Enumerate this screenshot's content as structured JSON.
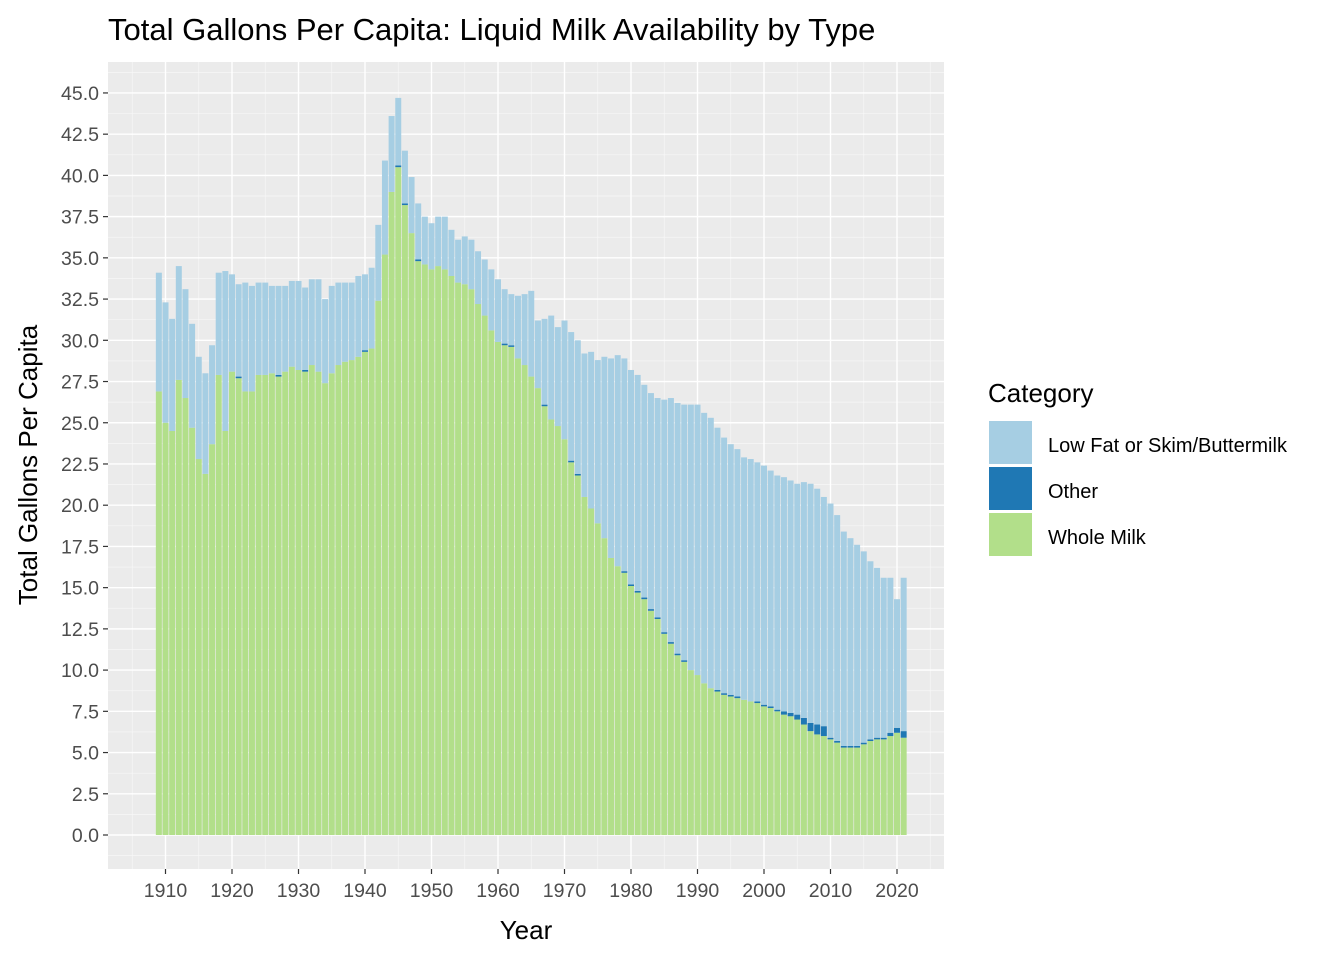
{
  "chart_data": {
    "type": "bar",
    "stacked": true,
    "title": "Total Gallons Per Capita: Liquid Milk Availability by Type",
    "xlabel": "Year",
    "ylabel": "Total Gallons Per Capita",
    "xlim": [
      1909,
      2021
    ],
    "ylim": [
      0,
      45
    ],
    "x_ticks": [
      1910,
      1920,
      1930,
      1940,
      1950,
      1960,
      1970,
      1980,
      1990,
      2000,
      2010,
      2020
    ],
    "y_ticks": [
      "0.0",
      "2.5",
      "5.0",
      "7.5",
      "10.0",
      "12.5",
      "15.0",
      "17.5",
      "20.0",
      "22.5",
      "25.0",
      "27.5",
      "30.0",
      "32.5",
      "35.0",
      "37.5",
      "40.0",
      "42.5",
      "45.0"
    ],
    "grid": true,
    "legend_position": "right",
    "legend": {
      "title": "Category",
      "entries": [
        {
          "name": "Low Fat or Skim/Buttermilk",
          "color": "#a6cee3"
        },
        {
          "name": "Other",
          "color": "#1f78b4"
        },
        {
          "name": "Whole Milk",
          "color": "#b2df8a"
        }
      ]
    },
    "colors": {
      "Low Fat or Skim/Buttermilk": "#a6cee3",
      "Other": "#1f78b4",
      "Whole Milk": "#b2df8a",
      "panel_background": "#ebebeb",
      "grid_major": "#ffffff",
      "grid_minor": "#f5f5f5"
    },
    "x": [
      1909,
      1910,
      1911,
      1912,
      1913,
      1914,
      1915,
      1916,
      1917,
      1918,
      1919,
      1920,
      1921,
      1922,
      1923,
      1924,
      1925,
      1926,
      1927,
      1928,
      1929,
      1930,
      1931,
      1932,
      1933,
      1934,
      1935,
      1936,
      1937,
      1938,
      1939,
      1940,
      1941,
      1942,
      1943,
      1944,
      1945,
      1946,
      1947,
      1948,
      1949,
      1950,
      1951,
      1952,
      1953,
      1954,
      1955,
      1956,
      1957,
      1958,
      1959,
      1960,
      1961,
      1962,
      1963,
      1964,
      1965,
      1966,
      1967,
      1968,
      1969,
      1970,
      1971,
      1972,
      1973,
      1974,
      1975,
      1976,
      1977,
      1978,
      1979,
      1980,
      1981,
      1982,
      1983,
      1984,
      1985,
      1986,
      1987,
      1988,
      1989,
      1990,
      1991,
      1992,
      1993,
      1994,
      1995,
      1996,
      1997,
      1998,
      1999,
      2000,
      2001,
      2002,
      2003,
      2004,
      2005,
      2006,
      2007,
      2008,
      2009,
      2010,
      2011,
      2012,
      2013,
      2014,
      2015,
      2016,
      2017,
      2018,
      2019,
      2020,
      2021
    ],
    "series": [
      {
        "name": "Whole Milk",
        "values": [
          26.9,
          25.0,
          24.5,
          27.6,
          26.5,
          24.7,
          22.8,
          21.9,
          23.7,
          27.9,
          24.5,
          28.1,
          27.7,
          26.9,
          26.9,
          27.9,
          27.9,
          28.0,
          27.8,
          28.1,
          28.4,
          28.2,
          28.1,
          28.5,
          28.1,
          27.4,
          28.0,
          28.5,
          28.7,
          28.8,
          29.0,
          29.3,
          29.5,
          32.4,
          35.2,
          39.0,
          40.5,
          38.2,
          36.5,
          34.8,
          34.6,
          34.3,
          34.5,
          34.3,
          33.9,
          33.5,
          33.4,
          33.1,
          32.2,
          31.5,
          30.6,
          29.9,
          29.7,
          29.6,
          28.9,
          28.5,
          27.8,
          27.1,
          26.0,
          25.2,
          24.8,
          24.0,
          22.6,
          21.8,
          20.5,
          19.8,
          18.9,
          18.0,
          16.8,
          16.3,
          15.9,
          15.1,
          14.7,
          14.3,
          13.6,
          13.1,
          12.2,
          11.6,
          10.9,
          10.5,
          10.0,
          9.7,
          9.2,
          8.9,
          8.7,
          8.5,
          8.4,
          8.3,
          8.2,
          8.1,
          8.0,
          7.8,
          7.7,
          7.5,
          7.3,
          7.2,
          7.0,
          6.7,
          6.3,
          6.1,
          6.0,
          5.8,
          5.6,
          5.3,
          5.3,
          5.3,
          5.5,
          5.7,
          5.8,
          5.8,
          6.0,
          6.2,
          5.9
        ],
        "display_names": {}
      },
      {
        "name": "Other",
        "values": [
          0.0,
          0.0,
          0.0,
          0.0,
          0.0,
          0.0,
          0.0,
          0.0,
          0.0,
          0.0,
          0.0,
          0.0,
          0.1,
          0.0,
          0.0,
          0.0,
          0.0,
          0.0,
          0.1,
          0.0,
          0.0,
          0.0,
          0.1,
          0.0,
          0.0,
          0.0,
          0.0,
          0.0,
          0.0,
          0.0,
          0.0,
          0.1,
          0.0,
          0.0,
          0.0,
          0.0,
          0.1,
          0.1,
          0.0,
          0.1,
          0.0,
          0.0,
          0.0,
          0.0,
          0.0,
          0.0,
          0.0,
          0.0,
          0.0,
          0.0,
          0.0,
          0.0,
          0.1,
          0.1,
          0.0,
          0.0,
          0.0,
          0.0,
          0.1,
          0.0,
          0.0,
          0.0,
          0.1,
          0.1,
          0.0,
          0.0,
          0.0,
          0.0,
          0.0,
          0.0,
          0.1,
          0.1,
          0.1,
          0.1,
          0.1,
          0.1,
          0.1,
          0.1,
          0.1,
          0.1,
          0.0,
          0.0,
          0.0,
          0.0,
          0.1,
          0.1,
          0.1,
          0.1,
          0.0,
          0.0,
          0.1,
          0.1,
          0.1,
          0.1,
          0.2,
          0.2,
          0.3,
          0.4,
          0.5,
          0.6,
          0.6,
          0.1,
          0.1,
          0.1,
          0.1,
          0.1,
          0.1,
          0.1,
          0.1,
          0.1,
          0.2,
          0.3,
          0.4
        ]
      },
      {
        "name": "Low Fat or Skim/Buttermilk",
        "values": [
          7.2,
          7.3,
          6.8,
          6.9,
          6.6,
          6.3,
          6.2,
          6.1,
          6.0,
          6.2,
          9.7,
          5.9,
          5.6,
          6.6,
          6.4,
          5.6,
          5.6,
          5.3,
          5.4,
          5.2,
          5.2,
          5.4,
          5.0,
          5.2,
          5.6,
          5.1,
          5.3,
          5.0,
          4.8,
          4.7,
          4.9,
          4.6,
          4.9,
          4.6,
          5.7,
          4.6,
          4.1,
          3.2,
          3.4,
          3.4,
          2.9,
          2.8,
          3.0,
          3.2,
          2.8,
          2.6,
          2.9,
          3.0,
          3.2,
          3.4,
          3.7,
          3.8,
          3.3,
          3.1,
          3.8,
          4.3,
          5.2,
          4.1,
          5.2,
          6.3,
          6.0,
          7.2,
          7.8,
          8.1,
          8.7,
          9.5,
          9.9,
          11.0,
          12.1,
          12.8,
          12.9,
          13.0,
          13.1,
          12.9,
          13.1,
          13.3,
          14.1,
          14.8,
          15.2,
          15.5,
          16.1,
          16.4,
          16.4,
          16.4,
          15.9,
          15.5,
          15.2,
          15.0,
          14.7,
          14.7,
          14.5,
          14.5,
          14.3,
          14.2,
          14.2,
          14.1,
          14.0,
          14.3,
          14.5,
          14.3,
          13.9,
          14.2,
          13.7,
          13.0,
          12.6,
          12.2,
          11.6,
          10.8,
          10.3,
          9.7,
          9.4,
          7.8,
          9.3
        ]
      }
    ]
  }
}
